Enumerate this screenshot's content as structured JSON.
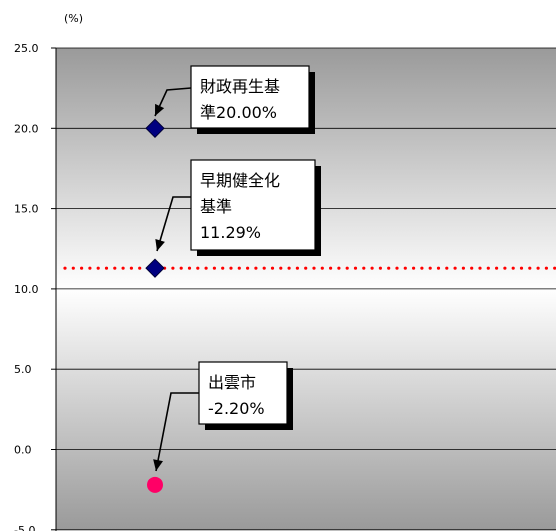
{
  "chart_data": {
    "type": "scatter",
    "title": "",
    "xlabel": "",
    "ylabel": "(%)",
    "ylim": [
      -5.0,
      25.0
    ],
    "yticks": [
      "25.0",
      "20.0",
      "15.0",
      "10.0",
      "5.0",
      "0.0",
      "-5.0"
    ],
    "grid": true,
    "points": [
      {
        "label": "財政再生基準20.00%",
        "lines": [
          "財政再生基",
          "準20.00%"
        ],
        "y": 20.0,
        "marker": "diamond",
        "color": "#000080"
      },
      {
        "label": "早期健全化基準11.29%",
        "lines": [
          "早期健全化",
          "基準",
          "11.29%"
        ],
        "y": 11.29,
        "marker": "diamond",
        "color": "#000080"
      },
      {
        "label": "出雲市-2.20%",
        "lines": [
          "出雲市",
          "-2.20%"
        ],
        "y": -2.2,
        "marker": "circle",
        "color": "#ff0066"
      }
    ],
    "reference_line": {
      "y": 11.29,
      "style": "dotted",
      "color": "#ff0000"
    }
  }
}
